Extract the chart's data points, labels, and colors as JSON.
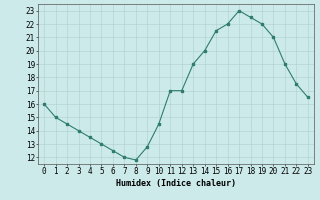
{
  "x": [
    0,
    1,
    2,
    3,
    4,
    5,
    6,
    7,
    8,
    9,
    10,
    11,
    12,
    13,
    14,
    15,
    16,
    17,
    18,
    19,
    20,
    21,
    22,
    23
  ],
  "y": [
    16,
    15,
    14.5,
    14,
    13.5,
    13,
    12.5,
    12,
    11.8,
    12.8,
    14.5,
    17,
    17,
    19,
    20,
    21.5,
    22,
    23,
    22.5,
    22,
    21,
    19,
    17.5,
    16.5
  ],
  "xlabel": "Humidex (Indice chaleur)",
  "xlim": [
    -0.5,
    23.5
  ],
  "ylim": [
    11.5,
    23.5
  ],
  "yticks": [
    12,
    13,
    14,
    15,
    16,
    17,
    18,
    19,
    20,
    21,
    22,
    23
  ],
  "xticks": [
    0,
    1,
    2,
    3,
    4,
    5,
    6,
    7,
    8,
    9,
    10,
    11,
    12,
    13,
    14,
    15,
    16,
    17,
    18,
    19,
    20,
    21,
    22,
    23
  ],
  "line_color": "#2e7d6e",
  "marker": "s",
  "marker_size": 1.5,
  "bg_color": "#cdeaea",
  "grid_color": "#b0cfcf",
  "xlabel_fontsize": 6,
  "tick_fontsize": 5.5
}
